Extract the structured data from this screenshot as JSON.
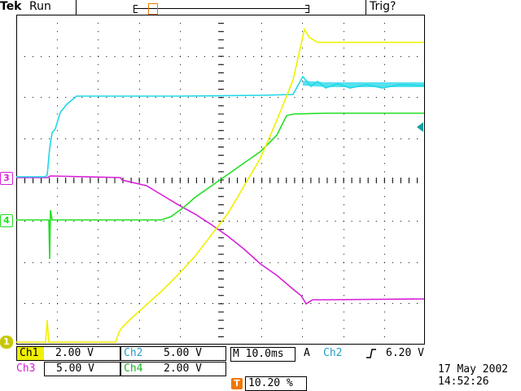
{
  "header": {
    "brand": "Tek",
    "run_state": "Run",
    "trigger_status": "Trig?",
    "trigger_marker_glyph": "T"
  },
  "colors": {
    "ch1": "#f0f000",
    "ch2": "#1fd7e8",
    "ch3": "#d71fd8",
    "ch4": "#22e022",
    "trigger": "#f07800",
    "grid": "#000000"
  },
  "markers": {
    "ch3": "3",
    "ch4": "4",
    "ch1": "1",
    "trigger": "T"
  },
  "readouts": {
    "ch1_name": "Ch1",
    "ch1_scale": "2.00 V",
    "ch2_name": "Ch2",
    "ch2_scale": "5.00 V",
    "ch3_name": "Ch3",
    "ch3_scale": "5.00 V",
    "ch4_name": "Ch4",
    "ch4_scale": "2.00 V",
    "timebase": "M 10.0ms",
    "trigger_source_prefix": "A",
    "trigger_source": "Ch2",
    "trigger_slope_icon": "rising-edge-icon",
    "trigger_level": "6.20 V",
    "trigger_position": "10.20 %",
    "date": "17 May 2002",
    "time": "14:52:26"
  }
}
